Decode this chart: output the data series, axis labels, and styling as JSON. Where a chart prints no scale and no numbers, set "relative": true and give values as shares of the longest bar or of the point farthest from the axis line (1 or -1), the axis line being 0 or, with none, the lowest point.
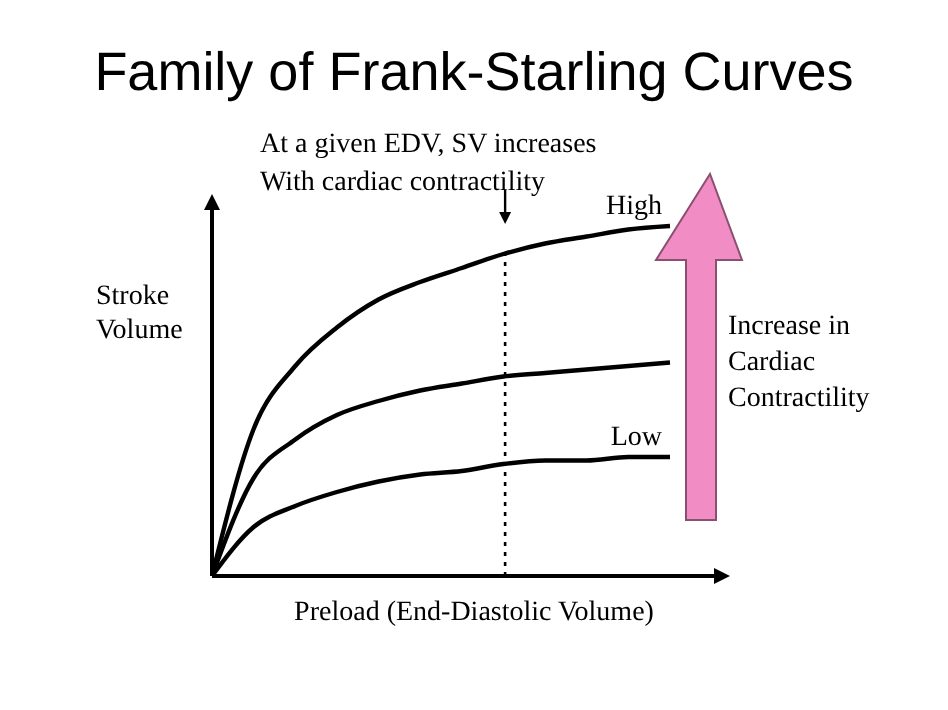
{
  "chart_data": {
    "type": "line",
    "title": "Family of Frank-Starling Curves",
    "xlabel": "Preload (End-Diastolic Volume)",
    "ylabel": "Stroke\nVolume",
    "relative": true,
    "marker": "none",
    "line_style": "solid",
    "categories": [
      null,
      null,
      null,
      null,
      null,
      null,
      null,
      null,
      null,
      null,
      null,
      null
    ],
    "series": [
      {
        "name": "High",
        "color": "#000000",
        "values": [
          0,
          0.42,
          0.6,
          0.71,
          0.79,
          0.84,
          0.88,
          0.92,
          0.95,
          0.97,
          0.99,
          1.0
        ]
      },
      {
        "color": "#000000",
        "values": [
          0,
          0.28,
          0.39,
          0.46,
          0.5,
          0.53,
          0.55,
          0.57,
          0.58,
          0.59,
          0.6,
          0.61
        ]
      },
      {
        "name": "Low",
        "color": "#000000",
        "values": [
          0,
          0.14,
          0.2,
          0.24,
          0.27,
          0.29,
          0.3,
          0.32,
          0.33,
          0.33,
          0.34,
          0.34
        ]
      }
    ],
    "annotations": [
      "Increase in\nCardiac\nContractility",
      "At a given EDV, SV increases\nWith cardiac contractility"
    ]
  }
}
